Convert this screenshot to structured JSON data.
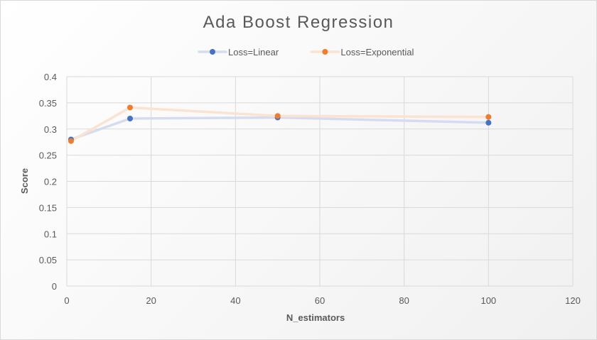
{
  "chart_data": {
    "type": "line",
    "title": "Ada Boost Regression",
    "xlabel": "N_estimators",
    "ylabel": "Score",
    "xlim": [
      0,
      120
    ],
    "ylim": [
      0,
      0.4
    ],
    "x_ticks": [
      "0",
      "20",
      "40",
      "60",
      "80",
      "100",
      "120"
    ],
    "y_ticks": [
      "0",
      "0.05",
      "0.1",
      "0.15",
      "0.2",
      "0.25",
      "0.3",
      "0.35",
      "0.4"
    ],
    "grid": true,
    "legend_position": "top",
    "x": [
      1,
      15,
      50,
      100
    ],
    "series": [
      {
        "name": "Loss=Linear",
        "values": [
          0.28,
          0.32,
          0.322,
          0.312
        ],
        "color": "#4472C4",
        "line_color": "#D6DCF0"
      },
      {
        "name": "Loss=Exponential",
        "values": [
          0.277,
          0.341,
          0.325,
          0.323
        ],
        "color": "#ED7D31",
        "line_color": "#FBE3D2"
      }
    ]
  }
}
